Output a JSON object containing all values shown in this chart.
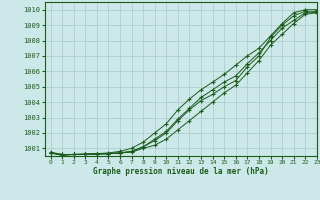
{
  "title": "Graphe pression niveau de la mer (hPa)",
  "background_color": "#cde8e8",
  "grid_color": "#a8c8c8",
  "line_color": "#1a5c1a",
  "marker_color": "#1a5c1a",
  "xlim": [
    -0.5,
    23
  ],
  "ylim": [
    1000.5,
    1010.5
  ],
  "yticks": [
    1001,
    1002,
    1003,
    1004,
    1005,
    1006,
    1007,
    1008,
    1009,
    1010
  ],
  "xticks": [
    0,
    1,
    2,
    3,
    4,
    5,
    6,
    7,
    8,
    9,
    10,
    11,
    12,
    13,
    14,
    15,
    16,
    17,
    18,
    19,
    20,
    21,
    22,
    23
  ],
  "series": [
    [
      1000.7,
      1000.6,
      1000.6,
      1000.6,
      1000.6,
      1000.65,
      1000.7,
      1000.8,
      1001.1,
      1001.5,
      1002.0,
      1002.8,
      1003.5,
      1004.1,
      1004.5,
      1005.0,
      1005.4,
      1006.3,
      1007.0,
      1008.2,
      1009.0,
      1009.6,
      1009.9,
      1009.8
    ],
    [
      1000.75,
      1000.6,
      1000.6,
      1000.65,
      1000.65,
      1000.65,
      1000.7,
      1000.75,
      1001.0,
      1001.2,
      1001.6,
      1002.2,
      1002.8,
      1003.4,
      1004.0,
      1004.6,
      1005.1,
      1005.9,
      1006.7,
      1007.7,
      1008.4,
      1009.1,
      1009.7,
      1009.8
    ],
    [
      1000.7,
      1000.55,
      1000.6,
      1000.6,
      1000.65,
      1000.65,
      1000.7,
      1000.8,
      1001.1,
      1001.6,
      1002.1,
      1002.9,
      1003.6,
      1004.3,
      1004.8,
      1005.3,
      1005.7,
      1006.5,
      1007.2,
      1008.0,
      1008.8,
      1009.3,
      1009.8,
      1009.9
    ],
    [
      1000.7,
      1000.55,
      1000.6,
      1000.6,
      1000.65,
      1000.7,
      1000.8,
      1001.0,
      1001.4,
      1002.0,
      1002.6,
      1003.5,
      1004.2,
      1004.8,
      1005.3,
      1005.8,
      1006.4,
      1007.0,
      1007.5,
      1008.3,
      1009.1,
      1009.8,
      1010.0,
      1010.0
    ]
  ]
}
